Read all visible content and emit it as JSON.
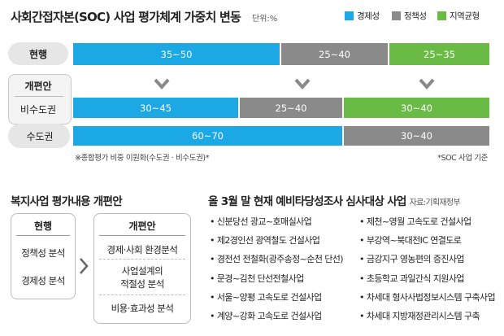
{
  "header": {
    "title": "사회간접자본(SOC) 사업 평가체계 가중치 변동",
    "unit": "단위:%",
    "legend": [
      {
        "label": "경제성",
        "color": "#1ba8e4"
      },
      {
        "label": "정책성",
        "color": "#8a8a8a"
      },
      {
        "label": "지역균형",
        "color": "#6abb46"
      }
    ]
  },
  "chart_data": {
    "type": "bar",
    "stacked": true,
    "orientation": "horizontal",
    "rows": [
      {
        "label": "현행",
        "segments": [
          {
            "series": "경제성",
            "label": "35~50",
            "value": 50
          },
          {
            "series": "정책성",
            "label": "25~40",
            "value": 26
          },
          {
            "series": "지역균형",
            "label": "25~35",
            "value": 24
          }
        ]
      },
      {
        "label": "비수도권",
        "group": "개편안",
        "segments": [
          {
            "series": "경제성",
            "label": "30~45",
            "value": 40
          },
          {
            "series": "정책성",
            "label": "25~40",
            "value": 25
          },
          {
            "series": "지역균형",
            "label": "30~40",
            "value": 35
          }
        ]
      },
      {
        "label": "수도권",
        "group": "개편안",
        "segments": [
          {
            "series": "경제성",
            "label": "60~70",
            "value": 65
          },
          {
            "series": "정책성",
            "label": "30~40",
            "value": 35
          }
        ]
      }
    ],
    "group_label": "개편안",
    "notes": [
      "※종합평가 비중 이원화(수도권 · 비수도권)*",
      "*SOC 사업 기준"
    ]
  },
  "welfare": {
    "title": "복지사업 평가내용 개편안",
    "current": {
      "header": "현행",
      "items": [
        "정책성 분석",
        "경제성 분석"
      ]
    },
    "proposed": {
      "header": "개편안",
      "items": [
        "경제·사회 환경분석",
        "사업설계의\n적절성 분석",
        "비용·효과성 분석"
      ]
    }
  },
  "projects": {
    "title": "올 3월 말 현재 예비타당성조사 심사대상 사업",
    "source": "자료:기획재정부",
    "left": [
      "신분당선 광교~호매실사업",
      "제2경인선 광역철도 건설사업",
      "경전선 전철화(광주송정~순천 단선)",
      "문경~김천 단선전철사업",
      "서울~양평 고속도로 건설사업",
      "계양~강화 고속도로 건설사업"
    ],
    "right": [
      "제천~영월 고속도로 건설사업",
      "부강역~북대전IC 연결도로",
      "금강지구 영농편의 증진사업",
      "초등학교 과일간식 지원사업",
      "차세대 형사사법정보시스템 구축사업",
      "차세대 지방재정관리시스템 구축"
    ]
  }
}
